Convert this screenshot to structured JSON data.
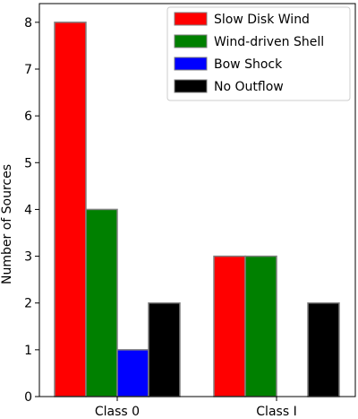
{
  "chart_data": {
    "type": "bar",
    "categories": [
      "Class 0",
      "Class I"
    ],
    "series": [
      {
        "name": "Slow Disk Wind",
        "values": [
          8,
          3
        ],
        "color": "#ff0000"
      },
      {
        "name": "Wind-driven Shell",
        "values": [
          4,
          3
        ],
        "color": "#008000"
      },
      {
        "name": "Bow Shock",
        "values": [
          1,
          0
        ],
        "color": "#0000ff"
      },
      {
        "name": "No Outflow",
        "values": [
          2,
          2
        ],
        "color": "#000000"
      }
    ],
    "xlabel": "",
    "ylabel": "Number of Sources",
    "ylim": [
      0,
      8.4
    ],
    "yticks": [
      0,
      1,
      2,
      3,
      4,
      5,
      6,
      7,
      8
    ],
    "grid": false,
    "legend": "top-right",
    "bar_edge_color": "#808080"
  }
}
